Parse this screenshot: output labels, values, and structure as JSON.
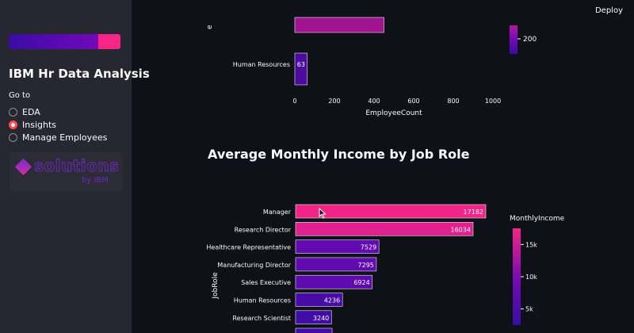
{
  "app": {
    "deploy_label": "Deploy"
  },
  "sidebar": {
    "title": "IBM Hr Data Analysis",
    "goto_label": "Go to",
    "options": [
      {
        "label": "EDA",
        "selected": false
      },
      {
        "label": "Insights",
        "selected": true
      },
      {
        "label": "Manage Employees",
        "selected": false
      }
    ],
    "logo": {
      "text": "solutions",
      "sub": "by IBM"
    }
  },
  "colors": {
    "accent": "#ff4b4b",
    "high": "#f72585",
    "mid": "#7209b7",
    "low": "#3a0ca3"
  },
  "chart_data": [
    {
      "type": "bar",
      "orientation": "horizontal",
      "partial": true,
      "categories_visible": [
        "Human Resources"
      ],
      "values_visible": [
        63
      ],
      "partial_bar_above_value": 450,
      "xlabel": "EmployeeCount",
      "xticks": [
        0,
        200,
        400,
        600,
        800,
        1000
      ],
      "colorbar_ticks": [
        "200"
      ]
    },
    {
      "type": "bar",
      "orientation": "horizontal",
      "title": "Average Monthly Income by Job Role",
      "categories": [
        "Manager",
        "Research Director",
        "Healthcare Representative",
        "Manufacturing Director",
        "Sales Executive",
        "Human Resources",
        "Research Scientist"
      ],
      "values": [
        17182,
        16034,
        7529,
        7295,
        6924,
        4236,
        3240
      ],
      "ylabel": "JobRole",
      "colorbar_title": "MonthlyIncome",
      "colorbar_ticks": [
        "15k",
        "10k",
        "5k"
      ],
      "colorbar_range": [
        2500,
        17500
      ]
    }
  ]
}
